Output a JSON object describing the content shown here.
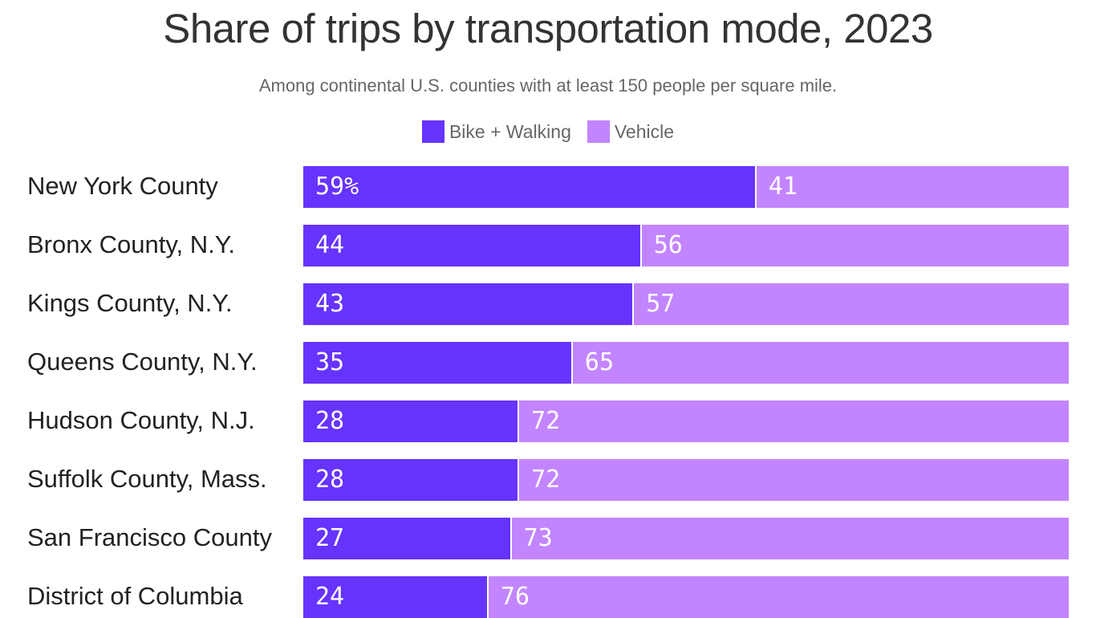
{
  "title": "Share of trips by transportation mode, 2023",
  "subtitle": "Among continental U.S. counties with at least 150 people per square mile.",
  "colors": {
    "bike_walking": "#6633ff",
    "vehicle": "#c285ff"
  },
  "chart_data": {
    "type": "bar",
    "orientation": "horizontal",
    "stacked": true,
    "title": "Share of trips by transportation mode, 2023",
    "subtitle": "Among continental U.S. counties with at least 150 people per square mile.",
    "legend_position": "top-center",
    "xlim": [
      0,
      100
    ],
    "categories": [
      "New York County",
      "Bronx County, N.Y.",
      "Kings County, N.Y.",
      "Queens County, N.Y.",
      "Hudson County, N.J.",
      "Suffolk County, Mass.",
      "San Francisco County",
      "District of Columbia"
    ],
    "series": [
      {
        "name": "Bike + Walking",
        "values": [
          59,
          44,
          43,
          35,
          28,
          28,
          27,
          24
        ],
        "labels": [
          "59%",
          "44",
          "43",
          "35",
          "28",
          "28",
          "27",
          "24"
        ]
      },
      {
        "name": "Vehicle",
        "values": [
          41,
          56,
          57,
          65,
          72,
          72,
          73,
          76
        ],
        "labels": [
          "41",
          "56",
          "57",
          "65",
          "72",
          "72",
          "73",
          "76"
        ]
      }
    ]
  }
}
